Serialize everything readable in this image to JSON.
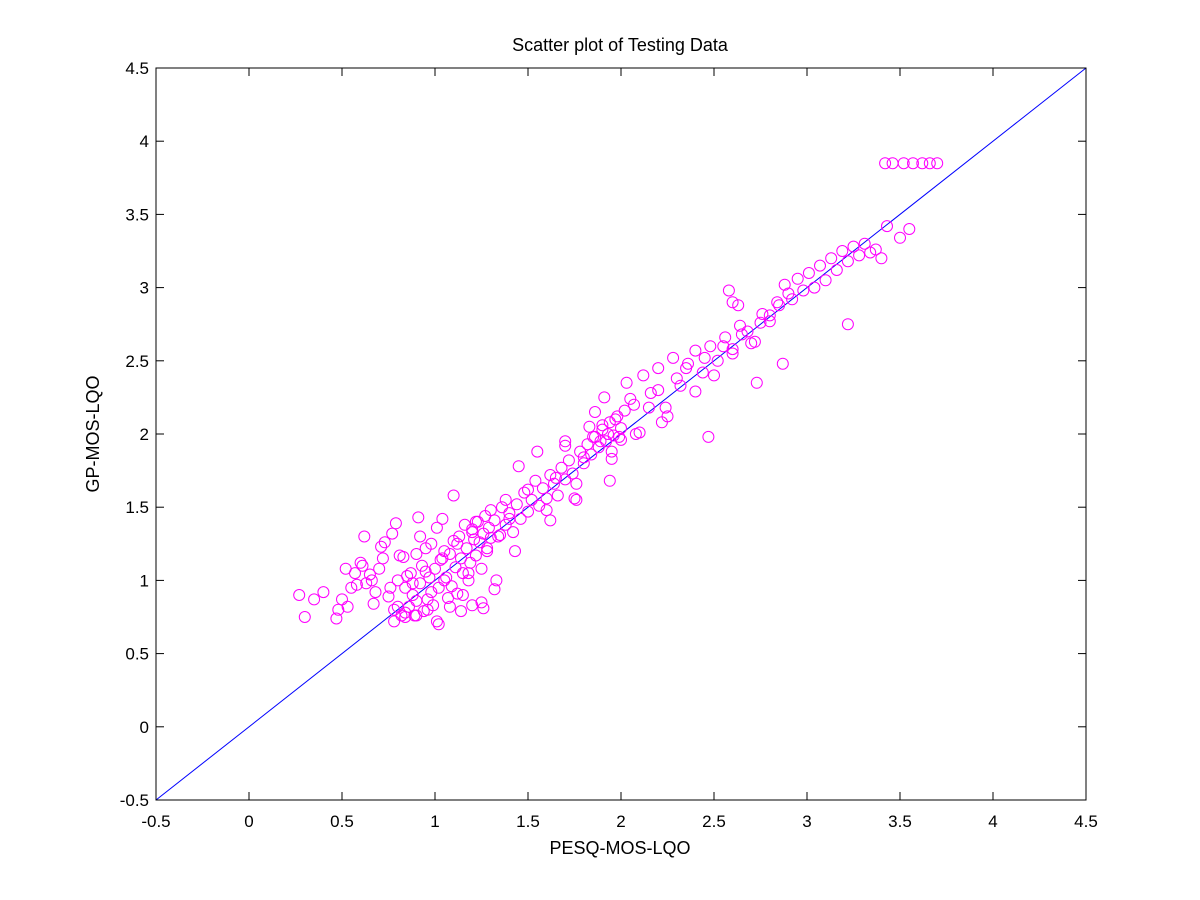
{
  "chart_data": {
    "type": "scatter",
    "title": "Scatter plot of Testing Data",
    "xlabel": "PESQ-MOS-LQO",
    "ylabel": "GP-MOS-LQO",
    "xlim": [
      -0.5,
      4.5
    ],
    "ylim": [
      -0.5,
      4.5
    ],
    "xticks": [
      -0.5,
      0,
      0.5,
      1,
      1.5,
      2,
      2.5,
      3,
      3.5,
      4,
      4.5
    ],
    "yticks": [
      -0.5,
      0,
      0.5,
      1,
      1.5,
      2,
      2.5,
      3,
      3.5,
      4,
      4.5
    ],
    "xtick_labels": [
      "-0.5",
      "0",
      "0.5",
      "1",
      "1.5",
      "2",
      "2.5",
      "3",
      "3.5",
      "4",
      "4.5"
    ],
    "ytick_labels": [
      "-0.5",
      "0",
      "0.5",
      "1",
      "1.5",
      "2",
      "2.5",
      "3",
      "3.5",
      "4",
      "4.5"
    ],
    "grid": false,
    "legend": null,
    "marker": "circle-open",
    "colors": {
      "points": "#ff00ff",
      "reference_line": "#0000ff",
      "axes": "#000000"
    },
    "reference_line": {
      "x": [
        -0.5,
        4.5
      ],
      "y": [
        -0.5,
        4.5
      ]
    },
    "series": [
      {
        "x": [
          0.27,
          0.3,
          0.35,
          0.4,
          0.47,
          0.5,
          0.52,
          0.55,
          0.58,
          0.6,
          0.62,
          0.63,
          0.65,
          0.67,
          0.68,
          0.7,
          0.72,
          0.73,
          0.75,
          0.77,
          0.78,
          0.79,
          0.8,
          0.8,
          0.82,
          0.83,
          0.84,
          0.85,
          0.86,
          0.87,
          0.88,
          0.89,
          0.9,
          0.9,
          0.91,
          0.92,
          0.93,
          0.94,
          0.95,
          0.96,
          0.97,
          0.98,
          0.99,
          1.0,
          1.01,
          1.02,
          1.03,
          1.04,
          1.05,
          1.05,
          0.48,
          0.53,
          0.57,
          0.61,
          0.66,
          0.71,
          0.76,
          0.81,
          0.84,
          0.88,
          0.92,
          0.95,
          0.98,
          1.01,
          1.04,
          1.07,
          1.1,
          1.12,
          1.15,
          1.18,
          1.2,
          1.22,
          1.25,
          1.28,
          1.3,
          1.33,
          1.35,
          1.38,
          1.4,
          1.43,
          1.06,
          1.08,
          1.09,
          1.1,
          1.11,
          1.12,
          1.13,
          1.14,
          1.15,
          1.16,
          1.17,
          1.18,
          1.19,
          1.2,
          1.21,
          1.22,
          1.23,
          1.24,
          1.25,
          1.26,
          1.27,
          1.28,
          1.29,
          1.3,
          1.32,
          1.34,
          1.36,
          1.38,
          1.4,
          1.42,
          1.44,
          1.46,
          1.48,
          1.5,
          1.52,
          1.54,
          1.56,
          1.58,
          1.6,
          1.62,
          1.64,
          1.66,
          1.68,
          1.7,
          1.72,
          1.74,
          1.76,
          1.78,
          1.8,
          1.82,
          1.84,
          1.86,
          1.88,
          1.9,
          1.92,
          1.94,
          1.96,
          1.98,
          2.0,
          2.02,
          1.45,
          1.5,
          1.55,
          1.6,
          1.65,
          1.7,
          1.75,
          1.8,
          1.85,
          1.9,
          1.95,
          2.0,
          2.05,
          2.1,
          2.15,
          2.2,
          2.25,
          2.3,
          2.35,
          2.4,
          2.45,
          2.5,
          2.55,
          2.6,
          2.65,
          2.7,
          2.75,
          2.8,
          2.85,
          2.9,
          1.83,
          1.86,
          1.89,
          1.91,
          1.93,
          1.95,
          1.97,
          1.99,
          2.03,
          2.07,
          2.12,
          2.16,
          2.2,
          2.24,
          2.28,
          2.32,
          2.36,
          2.4,
          2.44,
          2.48,
          2.52,
          2.56,
          2.6,
          2.64,
          2.68,
          2.72,
          2.76,
          2.8,
          2.84,
          2.88,
          2.92,
          2.95,
          2.98,
          3.01,
          3.04,
          3.07,
          3.1,
          3.13,
          3.16,
          3.19,
          3.22,
          3.25,
          3.28,
          3.31,
          3.34,
          3.37,
          3.4,
          3.43,
          3.5,
          3.55,
          3.42,
          3.46,
          3.52,
          3.57,
          3.62,
          3.66,
          3.7,
          0.78,
          0.84,
          0.9,
          0.96,
          1.02,
          1.08,
          1.14,
          1.2,
          1.26,
          1.32,
          1.62,
          1.7,
          1.76,
          1.94,
          2.08,
          2.22,
          2.47,
          2.58,
          2.73,
          2.87,
          3.22,
          2.6,
          2.63
        ],
        "y": [
          0.9,
          0.75,
          0.87,
          0.92,
          0.74,
          0.87,
          1.08,
          0.95,
          0.97,
          1.12,
          1.3,
          0.98,
          1.04,
          0.84,
          0.92,
          1.08,
          1.15,
          1.26,
          0.89,
          1.32,
          0.72,
          1.39,
          0.82,
          1.0,
          0.76,
          1.16,
          0.95,
          1.03,
          0.82,
          1.05,
          0.9,
          0.76,
          1.18,
          0.86,
          1.43,
          0.98,
          1.1,
          0.79,
          1.22,
          0.87,
          1.02,
          1.25,
          0.83,
          1.08,
          0.72,
          0.95,
          1.14,
          1.42,
          1.0,
          1.2,
          0.8,
          0.82,
          1.05,
          1.1,
          1.0,
          1.23,
          0.95,
          1.17,
          0.75,
          0.98,
          1.3,
          1.06,
          0.92,
          1.36,
          1.15,
          0.88,
          1.58,
          1.25,
          0.9,
          1.05,
          1.33,
          1.4,
          0.85,
          1.22,
          1.48,
          1.0,
          1.31,
          1.55,
          1.42,
          1.2,
          1.02,
          1.18,
          0.96,
          1.27,
          1.09,
          0.91,
          1.3,
          1.15,
          1.05,
          1.38,
          1.22,
          1.0,
          1.12,
          1.35,
          1.28,
          1.17,
          1.4,
          1.26,
          1.08,
          1.32,
          1.44,
          1.2,
          1.36,
          1.29,
          1.41,
          1.3,
          1.5,
          1.38,
          1.46,
          1.33,
          1.52,
          1.42,
          1.6,
          1.47,
          1.55,
          1.68,
          1.51,
          1.63,
          1.56,
          1.72,
          1.66,
          1.58,
          1.77,
          1.69,
          1.82,
          1.73,
          1.66,
          1.88,
          1.8,
          1.93,
          1.86,
          1.98,
          1.91,
          2.03,
          1.95,
          2.08,
          1.99,
          2.12,
          2.04,
          2.16,
          1.78,
          1.62,
          1.88,
          1.48,
          1.7,
          1.92,
          1.56,
          1.84,
          1.98,
          2.06,
          1.83,
          1.96,
          2.24,
          2.01,
          2.18,
          2.3,
          2.12,
          2.38,
          2.45,
          2.29,
          2.52,
          2.4,
          2.6,
          2.55,
          2.68,
          2.62,
          2.76,
          2.81,
          2.88,
          2.96,
          2.05,
          2.15,
          1.95,
          2.25,
          2.0,
          1.88,
          2.1,
          1.98,
          2.35,
          2.2,
          2.4,
          2.28,
          2.45,
          2.18,
          2.52,
          2.33,
          2.48,
          2.57,
          2.42,
          2.6,
          2.5,
          2.66,
          2.58,
          2.74,
          2.7,
          2.63,
          2.82,
          2.77,
          2.9,
          3.02,
          2.92,
          3.06,
          2.98,
          3.1,
          3.0,
          3.15,
          3.05,
          3.2,
          3.12,
          3.25,
          3.18,
          3.28,
          3.22,
          3.3,
          3.24,
          3.26,
          3.2,
          3.42,
          3.34,
          3.4,
          3.85,
          3.85,
          3.85,
          3.85,
          3.85,
          3.85,
          3.85,
          0.8,
          0.78,
          0.76,
          0.8,
          0.7,
          0.82,
          0.79,
          0.83,
          0.81,
          0.94,
          1.41,
          1.95,
          1.55,
          1.68,
          2.0,
          2.08,
          1.98,
          2.98,
          2.35,
          2.48,
          2.75,
          2.9,
          2.88
        ]
      }
    ]
  }
}
